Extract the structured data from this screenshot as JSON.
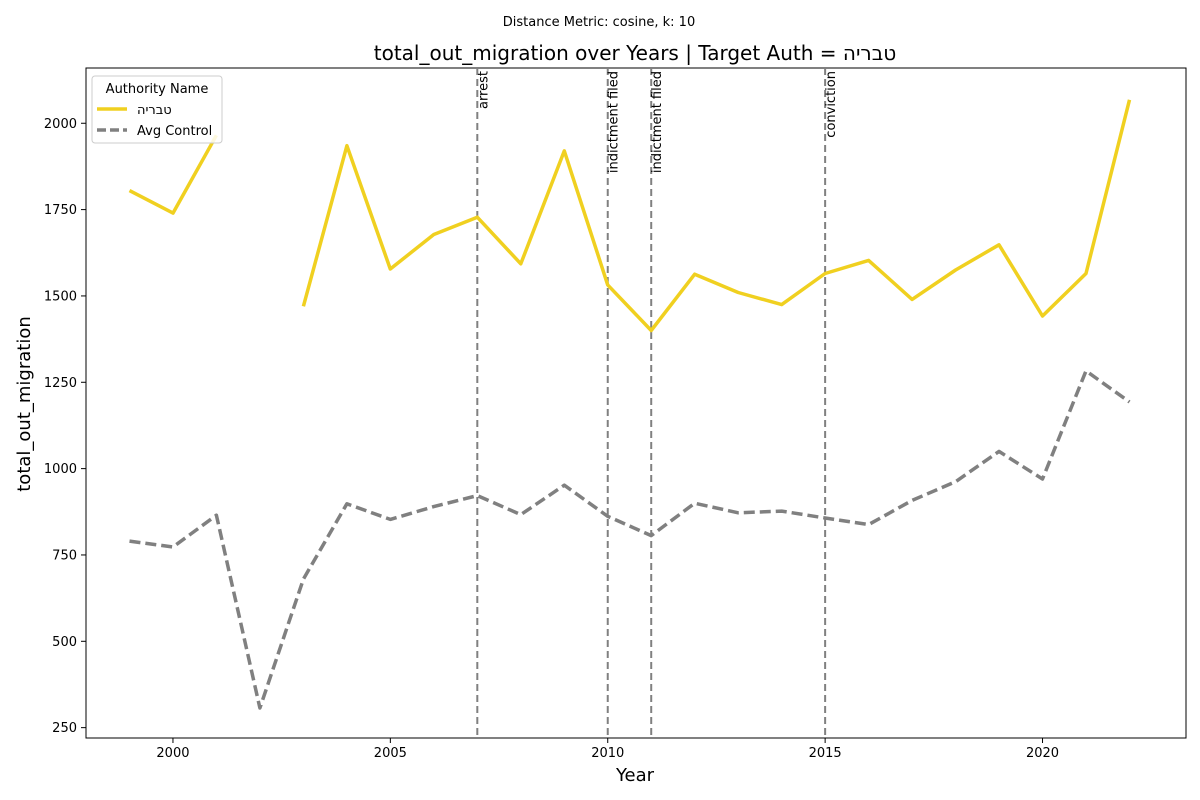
{
  "chart_data": {
    "type": "line",
    "subtitle": "Distance Metric: cosine, k: 10",
    "title": "total_out_migration over Years | Target Auth = טבריה",
    "xlabel": "Year",
    "ylabel": "total_out_migration",
    "xlim": [
      1998,
      2023.3
    ],
    "ylim": [
      220,
      2160
    ],
    "x_ticks": [
      2000,
      2005,
      2010,
      2015,
      2020
    ],
    "y_ticks": [
      250,
      500,
      750,
      1000,
      1250,
      1500,
      1750,
      2000
    ],
    "grid": false,
    "legend": {
      "title": "Authority Name",
      "placement": "top-left"
    },
    "series": [
      {
        "name": "טבריה",
        "color": "#f0d020",
        "style": "solid",
        "points": [
          [
            1999,
            1805
          ],
          [
            2000,
            1740
          ],
          [
            2001,
            1965
          ],
          [
            2002,
            null
          ],
          [
            2003,
            1470
          ],
          [
            2004,
            1935
          ],
          [
            2005,
            1578
          ],
          [
            2006,
            1678
          ],
          [
            2007,
            1728
          ],
          [
            2008,
            1593
          ],
          [
            2009,
            1920
          ],
          [
            2010,
            1532
          ],
          [
            2011,
            1400
          ],
          [
            2012,
            1563
          ],
          [
            2013,
            1510
          ],
          [
            2014,
            1475
          ],
          [
            2015,
            1565
          ],
          [
            2016,
            1603
          ],
          [
            2017,
            1490
          ],
          [
            2018,
            1575
          ],
          [
            2019,
            1648
          ],
          [
            2020,
            1442
          ],
          [
            2021,
            1565
          ],
          [
            2022,
            2068
          ]
        ]
      },
      {
        "name": "Avg Control",
        "color": "#808080",
        "style": "dashed",
        "points": [
          [
            1999,
            790
          ],
          [
            2000,
            773
          ],
          [
            2001,
            865
          ],
          [
            2002,
            307
          ],
          [
            2003,
            680
          ],
          [
            2004,
            898
          ],
          [
            2005,
            853
          ],
          [
            2006,
            890
          ],
          [
            2007,
            922
          ],
          [
            2008,
            867
          ],
          [
            2009,
            952
          ],
          [
            2010,
            862
          ],
          [
            2011,
            806
          ],
          [
            2012,
            900
          ],
          [
            2013,
            872
          ],
          [
            2014,
            877
          ],
          [
            2015,
            857
          ],
          [
            2016,
            838
          ],
          [
            2017,
            908
          ],
          [
            2018,
            962
          ],
          [
            2019,
            1050
          ],
          [
            2020,
            970
          ],
          [
            2021,
            1283
          ],
          [
            2022,
            1193
          ]
        ]
      }
    ],
    "events": [
      {
        "x": 2007,
        "label": "arrest"
      },
      {
        "x": 2010,
        "label": "indictment filed"
      },
      {
        "x": 2011,
        "label": "indictment filed"
      },
      {
        "x": 2015,
        "label": "conviction"
      }
    ]
  }
}
